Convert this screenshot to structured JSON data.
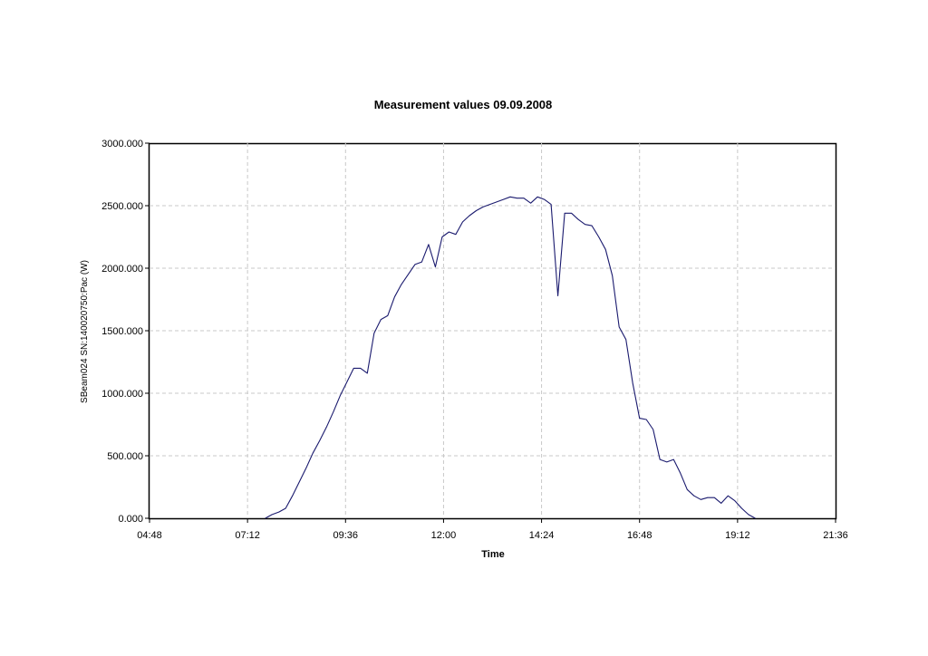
{
  "chart_data": {
    "type": "line",
    "title": "Measurement values 09.09.2008",
    "xlabel": "Time",
    "ylabel": "SBeam024 SN:140020750:Pac (W)",
    "xlim": [
      "04:48",
      "21:36"
    ],
    "ylim": [
      0,
      3000
    ],
    "x_ticks": [
      "04:48",
      "07:12",
      "09:36",
      "12:00",
      "14:24",
      "16:48",
      "19:12",
      "21:36"
    ],
    "y_ticks": [
      "0.000",
      "500.000",
      "1000.000",
      "1500.000",
      "2000.000",
      "2500.000",
      "3000.000"
    ],
    "grid": true,
    "line_color": "#1a1a6e",
    "series": [
      {
        "x": [
          "07:38",
          "07:48",
          "07:58",
          "08:08",
          "08:18",
          "08:28",
          "08:38",
          "08:48",
          "08:58",
          "09:08",
          "09:18",
          "09:28",
          "09:38",
          "09:48",
          "09:58",
          "10:08",
          "10:18",
          "10:28",
          "10:38",
          "10:48",
          "10:58",
          "11:08",
          "11:18",
          "11:28",
          "11:38",
          "11:48",
          "11:58",
          "12:08",
          "12:18",
          "12:28",
          "12:38",
          "12:48",
          "12:58",
          "13:08",
          "13:18",
          "13:28",
          "13:38",
          "13:48",
          "13:58",
          "14:08",
          "14:18",
          "14:28",
          "14:38",
          "14:48",
          "14:58",
          "15:08",
          "15:18",
          "15:28",
          "15:38",
          "15:48",
          "15:58",
          "16:08",
          "16:18",
          "16:28",
          "16:38",
          "16:48",
          "16:58",
          "17:08",
          "17:18",
          "17:28",
          "17:38",
          "17:48",
          "17:58",
          "18:08",
          "18:18",
          "18:28",
          "18:38",
          "18:48",
          "18:58",
          "19:08",
          "19:18",
          "19:28",
          "19:38"
        ],
        "values": [
          0,
          30,
          50,
          80,
          180,
          290,
          400,
          520,
          620,
          730,
          850,
          980,
          1090,
          1200,
          1200,
          1160,
          1480,
          1590,
          1620,
          1770,
          1870,
          1950,
          2030,
          2050,
          2190,
          2010,
          2250,
          2290,
          2270,
          2370,
          2420,
          2460,
          2490,
          2510,
          2530,
          2550,
          2570,
          2560,
          2560,
          2520,
          2570,
          2550,
          2510,
          1780,
          2440,
          2440,
          2390,
          2350,
          2340,
          2250,
          2150,
          1940,
          1530,
          1430,
          1080,
          800,
          790,
          710,
          470,
          450,
          470,
          360,
          230,
          180,
          150,
          165,
          165,
          120,
          180,
          140,
          80,
          30,
          0
        ]
      }
    ]
  }
}
